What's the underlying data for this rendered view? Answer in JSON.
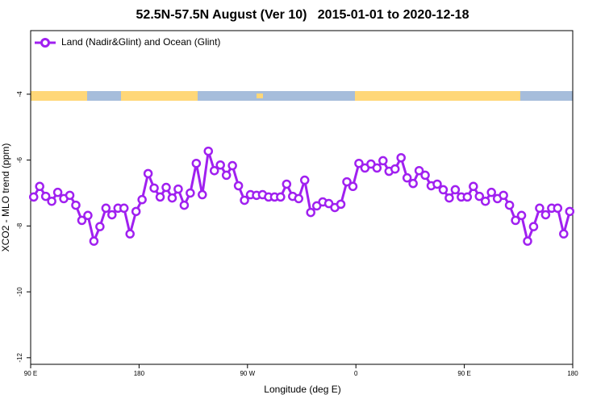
{
  "chart_data": {
    "type": "line",
    "title": "52.5N-57.5N August (Ver 10)   2015-01-01 to 2020-12-18",
    "xlabel": "Longitude (deg E)",
    "ylabel": "XCO2 - MLO trend (ppm)",
    "xlim": [
      90,
      540
    ],
    "ylim": [
      -12.2,
      -2.07
    ],
    "xticks": [
      {
        "value": 90,
        "label": "90 E"
      },
      180,
      {
        "value": 270,
        "label": "90 W"
      },
      {
        "value": 360,
        "label": "0"
      },
      {
        "value": 450,
        "label": "90 E"
      },
      {
        "value": 540,
        "label": "180"
      }
    ],
    "yticks": [
      -4,
      -6,
      -8,
      -10,
      -12
    ],
    "legend": "upper left",
    "x": [
      92.5,
      97.5,
      102.5,
      107.5,
      112.5,
      117.5,
      122.5,
      127.5,
      132.5,
      137.5,
      142.5,
      147.5,
      152.5,
      157.5,
      162.5,
      167.5,
      172.5,
      177.5,
      182.5,
      187.5,
      192.5,
      197.5,
      202.5,
      207.5,
      212.5,
      217.5,
      222.5,
      227.5,
      232.5,
      237.5,
      242.5,
      247.5,
      252.5,
      257.5,
      262.5,
      267.5,
      272.5,
      277.5,
      282.5,
      287.5,
      292.5,
      297.5,
      302.5,
      307.5,
      312.5,
      317.5,
      322.5,
      327.5,
      332.5,
      337.5,
      342.5,
      347.5,
      352.5,
      357.5,
      362.5,
      367.5,
      372.5,
      377.5,
      382.5,
      387.5,
      392.5,
      397.5,
      402.5,
      407.5,
      412.5,
      417.5,
      422.5,
      427.5,
      432.5,
      437.5,
      442.5,
      447.5,
      452.5,
      457.5,
      462.5,
      467.5,
      472.5,
      477.5,
      482.5,
      487.5,
      492.5,
      497.5,
      502.5,
      507.5,
      512.5,
      517.5,
      522.5,
      527.5,
      532.5,
      537.5
    ],
    "series": [
      {
        "name": "Land (Nadir&Glint) and Ocean (Glint)",
        "color": "#a020f0",
        "values": [
          -7.12,
          -6.8,
          -7.1,
          -7.25,
          -6.98,
          -7.17,
          -7.07,
          -7.37,
          -7.83,
          -7.68,
          -8.46,
          -8.02,
          -7.46,
          -7.66,
          -7.46,
          -7.46,
          -8.24,
          -7.56,
          -7.2,
          -6.41,
          -6.85,
          -7.12,
          -6.83,
          -7.15,
          -6.88,
          -7.37,
          -7.0,
          -6.1,
          -7.05,
          -5.73,
          -6.32,
          -6.15,
          -6.46,
          -6.17,
          -6.78,
          -7.22,
          -7.05,
          -7.07,
          -7.05,
          -7.12,
          -7.12,
          -7.12,
          -6.73,
          -7.1,
          -7.17,
          -6.61,
          -7.59,
          -7.39,
          -7.27,
          -7.32,
          -7.44,
          -7.34,
          -6.66,
          -6.8,
          -6.1,
          -6.24,
          -6.12,
          -6.24,
          -6.02,
          -6.34,
          -6.27,
          -5.93,
          -6.54,
          -6.71,
          -6.32,
          -6.46,
          -6.78,
          -6.73,
          -6.9,
          -7.15,
          -6.9,
          -7.12,
          -7.12,
          -6.8,
          -7.1,
          -7.25,
          -6.98,
          -7.17,
          -7.07,
          -7.37,
          -7.83,
          -7.68,
          -8.46,
          -8.02,
          -7.46,
          -7.66,
          -7.46,
          -7.46,
          -8.24,
          -7.56
        ]
      }
    ]
  }
}
